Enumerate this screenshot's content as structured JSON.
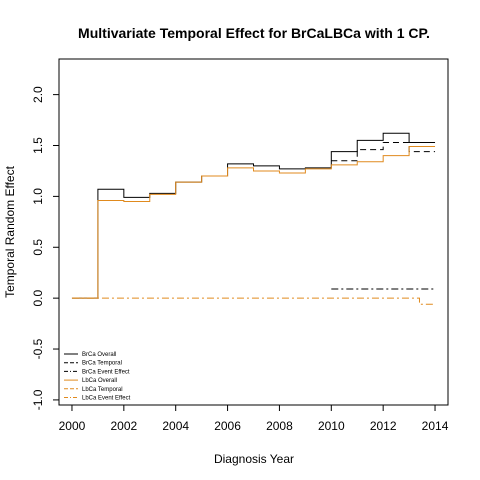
{
  "chart_data": {
    "type": "line",
    "title": "Multivariate Temporal Effect for BrCaLBCa with 1 CP.",
    "xlabel": "Diagnosis Year",
    "ylabel": "Temporal Random Effect",
    "xlim": [
      1999.5,
      2014.5
    ],
    "ylim": [
      -1.05,
      2.35
    ],
    "x_ticks": [
      2000,
      2002,
      2004,
      2006,
      2008,
      2010,
      2012,
      2014
    ],
    "x_tick_labels": [
      "2000",
      "2002",
      "2004",
      "2006",
      "2008",
      "2010",
      "2012",
      "2014"
    ],
    "y_ticks": [
      -1.0,
      -0.5,
      0.0,
      0.5,
      1.0,
      1.5,
      2.0
    ],
    "y_tick_labels": [
      "-1.0",
      "-0.5",
      "0.0",
      "0.5",
      "1.0",
      "1.5",
      "2.0"
    ],
    "grid": false,
    "legend_position": "bottom-left",
    "series": [
      {
        "name": "BrCa Overall",
        "color": "#000000",
        "dash": "solid",
        "step": true,
        "x": [
          2000,
          2001,
          2002,
          2003,
          2004,
          2005,
          2006,
          2007,
          2008,
          2009,
          2010,
          2011,
          2012,
          2013,
          2014
        ],
        "y": [
          0.0,
          1.07,
          0.99,
          1.03,
          1.14,
          1.2,
          1.32,
          1.3,
          1.27,
          1.28,
          1.44,
          1.55,
          1.62,
          1.53,
          1.53
        ]
      },
      {
        "name": "BrCa Temporal",
        "color": "#000000",
        "dash": "dashed",
        "step": true,
        "x": [
          2010,
          2011,
          2012,
          2013,
          2014
        ],
        "y": [
          1.35,
          1.46,
          1.53,
          1.44,
          1.44
        ]
      },
      {
        "name": "BrCa Event Effect",
        "color": "#000000",
        "dash": "dotdash",
        "step": true,
        "x": [
          2010,
          2014
        ],
        "y": [
          0.09,
          0.09
        ]
      },
      {
        "name": "LbCa Overall",
        "color": "#e08a1e",
        "dash": "solid",
        "step": true,
        "x": [
          2000,
          2001,
          2002,
          2003,
          2004,
          2005,
          2006,
          2007,
          2008,
          2009,
          2010,
          2011,
          2012,
          2013,
          2013.4,
          2014
        ],
        "y": [
          0.0,
          0.96,
          0.95,
          1.02,
          1.14,
          1.2,
          1.28,
          1.25,
          1.23,
          1.27,
          1.31,
          1.34,
          1.4,
          1.49,
          1.49,
          1.49
        ]
      },
      {
        "name": "LbCa Temporal",
        "color": "#e08a1e",
        "dash": "dashed",
        "step": true,
        "x": [
          2013.4,
          2014
        ],
        "y": [
          -1.05,
          -1.05
        ]
      },
      {
        "name": "LbCa Event Effect",
        "color": "#e08a1e",
        "dash": "dotdash",
        "step": true,
        "x": [
          2000,
          2013.4,
          2014
        ],
        "y": [
          0.0,
          -0.06,
          -0.06
        ]
      }
    ]
  }
}
